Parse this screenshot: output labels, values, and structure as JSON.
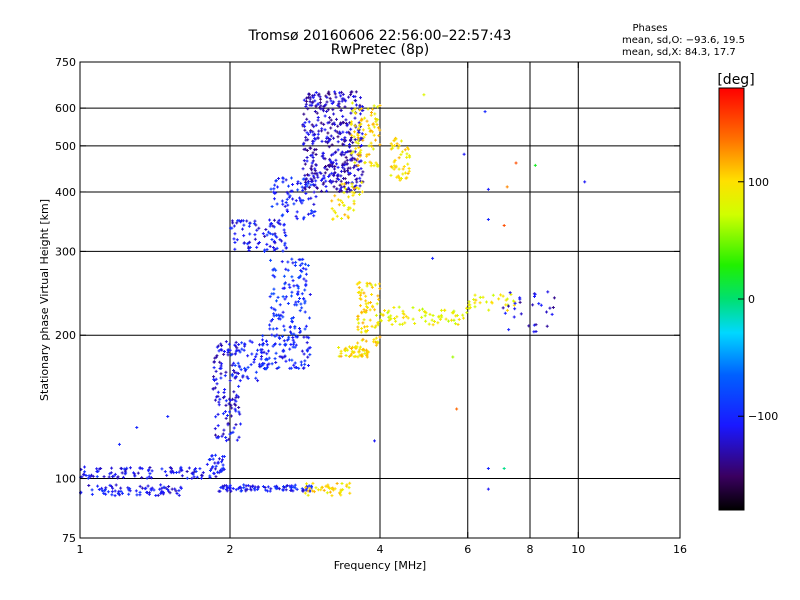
{
  "chart_data": {
    "type": "scatter",
    "title": "Tromsø 20160606 22:56:00–22:57:43",
    "subtitle": "RwPretec (8p)",
    "xlabel": "Frequency [MHz]",
    "ylabel": "Stationary phase Virtual Height [km]",
    "x_scale": "log",
    "y_scale": "log",
    "xlim": [
      1,
      16
    ],
    "ylim": [
      75,
      750
    ],
    "x_ticks": [
      1,
      2,
      4,
      6,
      8,
      10,
      16
    ],
    "x_tick_labels": [
      "1",
      "2",
      "4",
      "6",
      "8",
      "10",
      "16"
    ],
    "x_gridlines": [
      2,
      4,
      6,
      8,
      10
    ],
    "y_ticks": [
      75,
      100,
      200,
      300,
      400,
      500,
      600,
      750
    ],
    "y_tick_labels": [
      "75",
      "100",
      "200",
      "300",
      "400",
      "500",
      "600",
      "750"
    ],
    "y_gridlines": [
      100,
      200,
      300,
      400,
      500,
      600
    ],
    "grid": true,
    "phase_stats": {
      "heading": "Phases",
      "line1": "mean, sd,O: −93.6, 19.5",
      "line2": "mean, sd,X:  84.3, 17.7"
    },
    "colorbar": {
      "label": "[deg]",
      "range": [
        -180,
        180
      ],
      "ticks": [
        100,
        0,
        -100
      ],
      "tick_labels": [
        "100",
        "0",
        "−100"
      ]
    },
    "clusters": [
      {
        "f": [
          1.0,
          1.6
        ],
        "h": [
          92,
          97
        ],
        "phase": -110,
        "n": 80
      },
      {
        "f": [
          1.0,
          1.95
        ],
        "h": [
          100,
          106
        ],
        "phase": -110,
        "n": 110
      },
      {
        "f": [
          1.8,
          1.95
        ],
        "h": [
          105,
          112
        ],
        "phase": -110,
        "n": 20
      },
      {
        "f": [
          1.9,
          3.0
        ],
        "h": [
          94,
          97
        ],
        "phase": -105,
        "n": 90
      },
      {
        "f": [
          2.8,
          3.5
        ],
        "h": [
          92,
          98
        ],
        "phase": 100,
        "n": 40
      },
      {
        "f": [
          1.85,
          2.1
        ],
        "h": [
          120,
          195
        ],
        "phase": -115,
        "n": 120
      },
      {
        "f": [
          2.0,
          2.4
        ],
        "h": [
          160,
          195
        ],
        "phase": -100,
        "n": 60
      },
      {
        "f": [
          2.3,
          2.9
        ],
        "h": [
          170,
          200
        ],
        "phase": -100,
        "n": 90
      },
      {
        "f": [
          2.4,
          2.9
        ],
        "h": [
          200,
          290
        ],
        "phase": -95,
        "n": 120
      },
      {
        "f": [
          2.0,
          2.6
        ],
        "h": [
          300,
          350
        ],
        "phase": -110,
        "n": 90
      },
      {
        "f": [
          2.4,
          3.0
        ],
        "h": [
          350,
          430
        ],
        "phase": -100,
        "n": 80
      },
      {
        "f": [
          2.8,
          3.7
        ],
        "h": [
          400,
          650
        ],
        "phase": -125,
        "n": 420
      },
      {
        "f": [
          3.5,
          4.0
        ],
        "h": [
          450,
          620
        ],
        "phase": 100,
        "n": 90
      },
      {
        "f": [
          3.2,
          3.7
        ],
        "h": [
          350,
          420
        ],
        "phase": 100,
        "n": 40
      },
      {
        "f": [
          4.2,
          4.6
        ],
        "h": [
          420,
          520
        ],
        "phase": 100,
        "n": 50
      },
      {
        "f": [
          3.3,
          3.8
        ],
        "h": [
          180,
          190
        ],
        "phase": 100,
        "n": 50
      },
      {
        "f": [
          3.6,
          4.0
        ],
        "h": [
          190,
          260
        ],
        "phase": 100,
        "n": 80
      },
      {
        "f": [
          4.0,
          6.0
        ],
        "h": [
          210,
          230
        ],
        "phase": 85,
        "n": 70
      },
      {
        "f": [
          6.0,
          7.5
        ],
        "h": [
          225,
          245
        ],
        "phase": 90,
        "n": 30
      },
      {
        "f": [
          7.0,
          9.0
        ],
        "h": [
          200,
          250
        ],
        "phase": -120,
        "n": 30
      }
    ],
    "scattered_points": [
      {
        "f": 1.3,
        "h": 128,
        "phase": -100
      },
      {
        "f": 1.5,
        "h": 135,
        "phase": -100
      },
      {
        "f": 1.2,
        "h": 118,
        "phase": -100
      },
      {
        "f": 3.9,
        "h": 120,
        "phase": -110
      },
      {
        "f": 6.6,
        "h": 405,
        "phase": -105
      },
      {
        "f": 6.6,
        "h": 350,
        "phase": -100
      },
      {
        "f": 7.2,
        "h": 410,
        "phase": 130
      },
      {
        "f": 7.5,
        "h": 460,
        "phase": 150
      },
      {
        "f": 8.2,
        "h": 455,
        "phase": 20
      },
      {
        "f": 10.3,
        "h": 420,
        "phase": -110
      },
      {
        "f": 6.5,
        "h": 590,
        "phase": -100
      },
      {
        "f": 6.6,
        "h": 105,
        "phase": -100
      },
      {
        "f": 7.1,
        "h": 105,
        "phase": -5
      },
      {
        "f": 6.6,
        "h": 95,
        "phase": -110
      },
      {
        "f": 5.6,
        "h": 180,
        "phase": 60
      },
      {
        "f": 4.9,
        "h": 640,
        "phase": 80
      },
      {
        "f": 7.1,
        "h": 340,
        "phase": 150
      },
      {
        "f": 5.9,
        "h": 480,
        "phase": -110
      },
      {
        "f": 5.1,
        "h": 290,
        "phase": -100
      },
      {
        "f": 5.7,
        "h": 140,
        "phase": 140
      }
    ]
  }
}
